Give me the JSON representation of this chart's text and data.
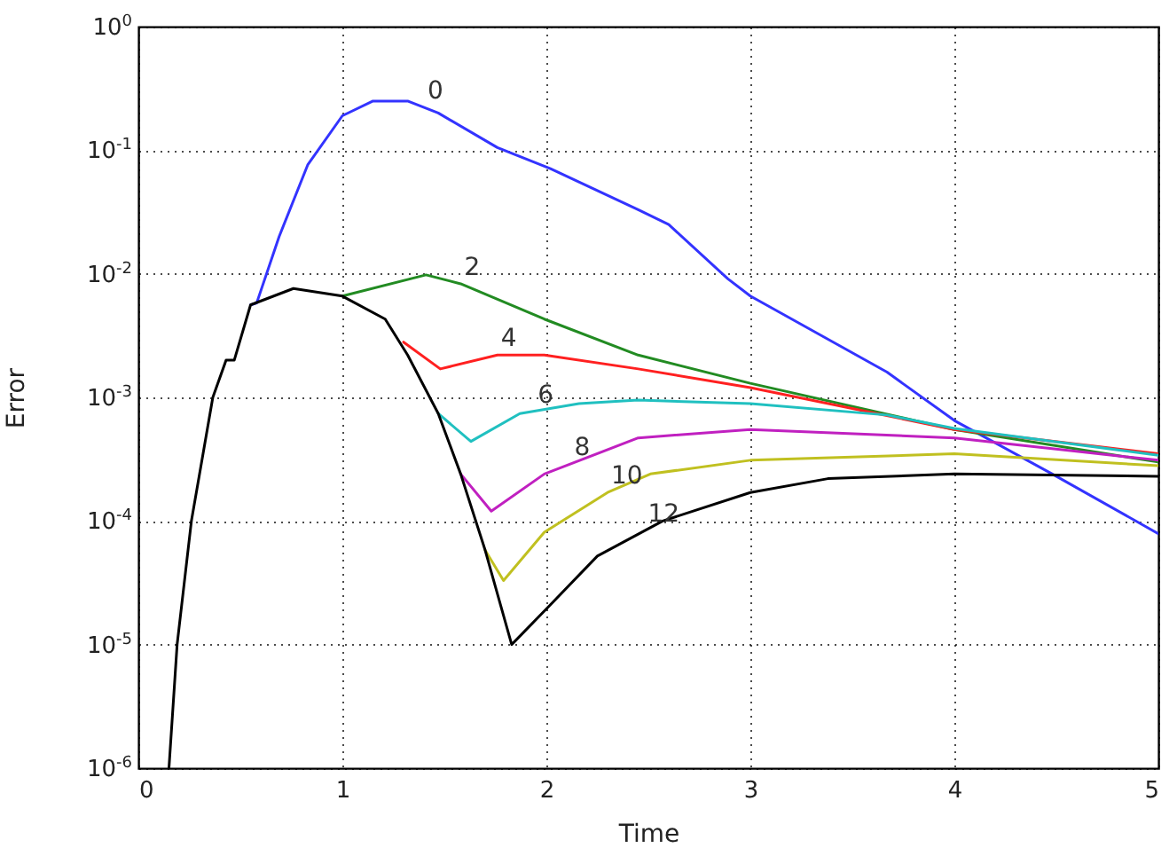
{
  "chart_data": {
    "type": "line",
    "xlabel": "Time",
    "ylabel": "Error",
    "log": "y",
    "grid": true,
    "marker": "none",
    "line_style": "solid",
    "xlim": [
      0,
      5
    ],
    "xticks": [
      0,
      1,
      2,
      3,
      4,
      5
    ],
    "ylim": [
      1e-06,
      1
    ],
    "yticks": [
      {
        "value": 1e-06,
        "label": "10$^{-6}$"
      },
      {
        "value": 1e-05,
        "label": "10$^{-5}$"
      },
      {
        "value": 0.0001,
        "label": "10$^{-4}$"
      },
      {
        "value": 0.001,
        "label": "10$^{-3}$"
      },
      {
        "value": 0.01,
        "label": "10$^{-2}$"
      },
      {
        "value": 0.1,
        "label": "10$^{-1}$"
      },
      {
        "value": 1,
        "label": "10$^{0}$"
      }
    ],
    "series": [
      {
        "name": "0",
        "color": "#3333ff",
        "x": [
          0.55,
          0.58,
          0.69,
          0.83,
          1.0,
          1.15,
          1.32,
          1.47,
          1.76,
          2.02,
          2.45,
          2.6,
          2.89,
          3.0,
          3.67,
          4.0,
          4.48,
          5.0
        ],
        "values": [
          0.0056,
          0.0058,
          0.02,
          0.076,
          0.19,
          0.25,
          0.25,
          0.2,
          0.105,
          0.071,
          0.033,
          0.025,
          0.0091,
          0.0066,
          0.0016,
          0.00065,
          0.00024,
          7.9e-05
        ]
      },
      {
        "name": "2",
        "color": "#228b22",
        "x": [
          1.0,
          1.41,
          1.58,
          1.99,
          2.45,
          3.0,
          4.0,
          5.0
        ],
        "values": [
          0.0066,
          0.0098,
          0.0083,
          0.0043,
          0.0022,
          0.0013,
          0.00055,
          0.0003
        ]
      },
      {
        "name": "4",
        "color": "#ff2020",
        "x": [
          1.3,
          1.48,
          1.76,
          1.99,
          2.45,
          3.0,
          4.0,
          5.0
        ],
        "values": [
          0.0028,
          0.0017,
          0.0022,
          0.0022,
          0.0017,
          0.0012,
          0.00055,
          0.00035
        ]
      },
      {
        "name": "6",
        "color": "#20c0c0",
        "x": [
          1.47,
          1.63,
          1.87,
          2.16,
          2.45,
          3.0,
          3.67,
          4.0,
          5.0
        ],
        "values": [
          0.00074,
          0.00044,
          0.00074,
          0.00089,
          0.00095,
          0.00089,
          0.00072,
          0.00056,
          0.00034
        ]
      },
      {
        "name": "8",
        "color": "#c020c0",
        "x": [
          1.58,
          1.73,
          1.99,
          2.45,
          3.0,
          4.0,
          5.0
        ],
        "values": [
          0.00024,
          0.00012,
          0.00024,
          0.00047,
          0.00055,
          0.00047,
          0.00031
        ]
      },
      {
        "name": "10",
        "color": "#c0c020",
        "x": [
          1.7,
          1.79,
          1.99,
          2.3,
          2.51,
          3.0,
          4.0,
          5.0
        ],
        "values": [
          5.8e-05,
          3.3e-05,
          8.1e-05,
          0.00017,
          0.00024,
          0.00031,
          0.00035,
          0.00028
        ]
      },
      {
        "name": "12",
        "color": "#000000",
        "x": [
          0.15,
          0.19,
          0.26,
          0.365,
          0.43,
          0.47,
          0.55,
          0.76,
          1.0,
          1.21,
          1.32,
          1.47,
          1.58,
          1.7,
          1.83,
          2.02,
          2.25,
          2.57,
          3.0,
          3.38,
          4.0,
          5.0
        ],
        "values": [
          1e-06,
          1e-05,
          0.0001,
          0.001,
          0.002,
          0.002,
          0.0056,
          0.0076,
          0.0066,
          0.0043,
          0.0022,
          0.00074,
          0.00024,
          5.8e-05,
          1e-05,
          2.1e-05,
          5.2e-05,
          0.0001,
          0.00017,
          0.00022,
          0.00024,
          0.00023
        ]
      }
    ]
  }
}
